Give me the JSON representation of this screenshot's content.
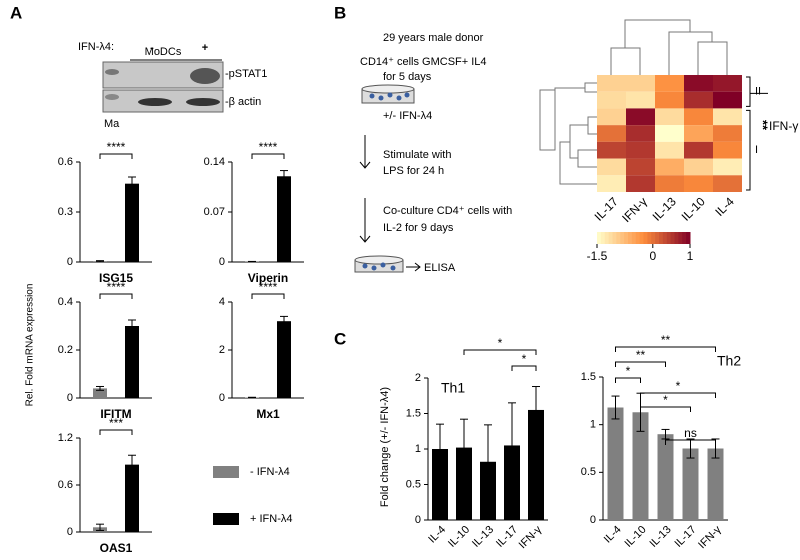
{
  "panel_labels": {
    "a": "A",
    "b": "B",
    "c": "C"
  },
  "blot": {
    "group": "MoDCs",
    "treatment": "IFN-λ4:",
    "lanes": [
      "-",
      "+"
    ],
    "bands": [
      "-pSTAT1",
      "-β actin"
    ],
    "marker": "Ma"
  },
  "panel_a": {
    "ylabel": "Rel. Fold mRNA  expression",
    "legend": [
      {
        "name": "- IFN-λ4",
        "color": "#808080"
      },
      {
        "name": "+ IFN-λ4",
        "color": "#000000"
      }
    ]
  },
  "protocol": {
    "donor": "29 years male donor",
    "culture": [
      "CD14⁺ cells GMCSF+ IL4",
      "for 5 days"
    ],
    "treatment": "+/- IFN-λ4",
    "stimulation": [
      "Stimulate with",
      "LPS for 24 h"
    ],
    "coculture": [
      "Co-culture CD4⁺ cells with",
      "IL-2 for 9 days"
    ],
    "readout": "ELISA"
  },
  "chart_data": [
    {
      "type": "pair",
      "xlabel": "ISG15",
      "values": [
        0.005,
        0.47
      ],
      "errors": [
        0.003,
        0.04
      ],
      "ylim": [
        0,
        0.6
      ],
      "yticks": [
        0,
        0.3,
        0.6
      ],
      "significance": "****"
    },
    {
      "type": "pair",
      "xlabel": "Viperin",
      "values": [
        0.0005,
        0.12
      ],
      "errors": [
        0.0003,
        0.008
      ],
      "ylim": [
        0,
        0.14
      ],
      "yticks": [
        0,
        0.07,
        0.14
      ],
      "significance": "****"
    },
    {
      "type": "pair",
      "xlabel": "IFITM",
      "values": [
        0.04,
        0.3
      ],
      "errors": [
        0.008,
        0.025
      ],
      "ylim": [
        0,
        0.4
      ],
      "yticks": [
        0,
        0.2,
        0.4
      ],
      "significance": "****"
    },
    {
      "type": "pair",
      "xlabel": "Mx1",
      "values": [
        0.02,
        3.2
      ],
      "errors": [
        0.01,
        0.2
      ],
      "ylim": [
        0,
        4
      ],
      "yticks": [
        0,
        2,
        4
      ],
      "significance": "****"
    },
    {
      "type": "pair",
      "xlabel": "OAS1",
      "values": [
        0.06,
        0.86
      ],
      "errors": [
        0.04,
        0.12
      ],
      "ylim": [
        0,
        1.2
      ],
      "yticks": [
        0,
        0.6,
        1.2
      ],
      "significance": "***"
    },
    {
      "type": "bar",
      "ylabel": "Fold change (+/- IFN-λ4)",
      "annotation": "Th1",
      "color": "#000000",
      "categories": [
        "IL-4",
        "IL-10",
        "IL-13",
        "IL-17",
        "IFN-γ"
      ],
      "values": [
        1.0,
        1.02,
        0.82,
        1.05,
        1.55
      ],
      "errors": [
        0.35,
        0.4,
        0.52,
        0.6,
        0.33
      ],
      "ylim": [
        0,
        2
      ],
      "yticks": [
        0,
        0.5,
        1,
        1.5,
        2
      ],
      "brackets": [
        {
          "from": 1,
          "to": 4,
          "label": "*"
        },
        {
          "from": 3,
          "to": 4,
          "label": "*"
        }
      ]
    },
    {
      "type": "bar",
      "annotation": "Th2",
      "color": "#808080",
      "categories": [
        "IL-4",
        "IL-10",
        "IL-13",
        "IL-17",
        "IFN-γ"
      ],
      "values": [
        1.18,
        1.13,
        0.9,
        0.75,
        0.75
      ],
      "errors": [
        0.12,
        0.2,
        0.05,
        0.1,
        0.1
      ],
      "ylim": [
        0,
        1.5
      ],
      "yticks": [
        0,
        0.5,
        1,
        1.5
      ],
      "brackets": [
        {
          "from": 0,
          "to": 4,
          "label": "**"
        },
        {
          "from": 0,
          "to": 2,
          "label": "**"
        },
        {
          "from": 0,
          "to": 1,
          "label": "*"
        },
        {
          "from": 1,
          "to": 4,
          "label": "*"
        },
        {
          "from": 1,
          "to": 3,
          "label": "*"
        },
        {
          "from": 2,
          "to": 4,
          "label": "ns"
        }
      ]
    },
    {
      "type": "heatmap",
      "columns": [
        "IL-17",
        "IFN-γ",
        "IL-13",
        "IL-10",
        "IL-4"
      ],
      "values": [
        [
          -1.0,
          -1.0,
          -0.3,
          0.9,
          0.8
        ],
        [
          -1.1,
          -1.2,
          -0.2,
          0.6,
          1.0
        ],
        [
          -1.0,
          0.9,
          -1.1,
          -0.2,
          -1.2
        ],
        [
          0.0,
          0.6,
          -1.5,
          -0.5,
          -0.1
        ],
        [
          0.4,
          0.5,
          -1.2,
          0.5,
          -0.2
        ],
        [
          -1.1,
          0.4,
          -0.6,
          -1.0,
          -1.3
        ],
        [
          -1.3,
          0.5,
          -0.1,
          -0.2,
          0.0
        ]
      ],
      "colorscale": [
        "#ffffcc",
        "#fd8d3c",
        "#800026"
      ],
      "clim": [
        -1.5,
        1
      ],
      "cticks": [
        -1.5,
        0,
        1
      ],
      "clusters": [
        {
          "label": "II",
          "rows": [
            0,
            1
          ]
        },
        {
          "label": "I",
          "rows": [
            2,
            6
          ]
        }
      ],
      "cluster_test": {
        "label": "**",
        "variable": "IFN-γ"
      }
    }
  ]
}
